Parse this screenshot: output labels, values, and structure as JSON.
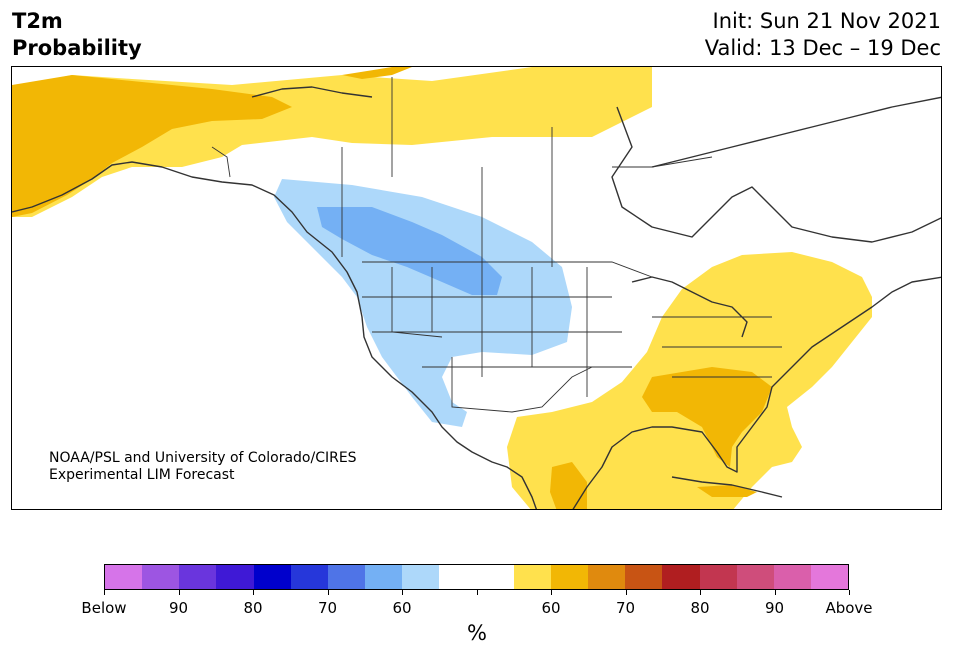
{
  "title": {
    "line1": "T2m",
    "line2": "Probability"
  },
  "subtitle": {
    "init": "Init: Sun 21 Nov 2021",
    "valid": "Valid: 13 Dec – 19 Dec"
  },
  "credit": {
    "line1": "NOAA/PSL and University of Colorado/CIRES",
    "line2": "Experimental LIM Forecast"
  },
  "colors": {
    "land_border": "#333333",
    "below_60": "#add8fa",
    "below_70": "#74b0f4",
    "above_60": "#ffe14d",
    "above_70": "#f2b705",
    "above_80": "#e08a0e"
  },
  "colorbar": {
    "colors": [
      "#d674e9",
      "#9d55e2",
      "#6a35dd",
      "#3f19d6",
      "#0000cc",
      "#2637da",
      "#4f74e7",
      "#74b0f4",
      "#add8fa",
      "#ffffff",
      "#ffffff",
      "#ffe14d",
      "#f2b705",
      "#e08a0e",
      "#c85414",
      "#b01e20",
      "#c23650",
      "#cf4d7b",
      "#da5fab",
      "#e477db"
    ],
    "labels": [
      "Below",
      "90",
      "80",
      "70",
      "60",
      "",
      "60",
      "70",
      "80",
      "90",
      "Above"
    ],
    "unit": "%"
  }
}
